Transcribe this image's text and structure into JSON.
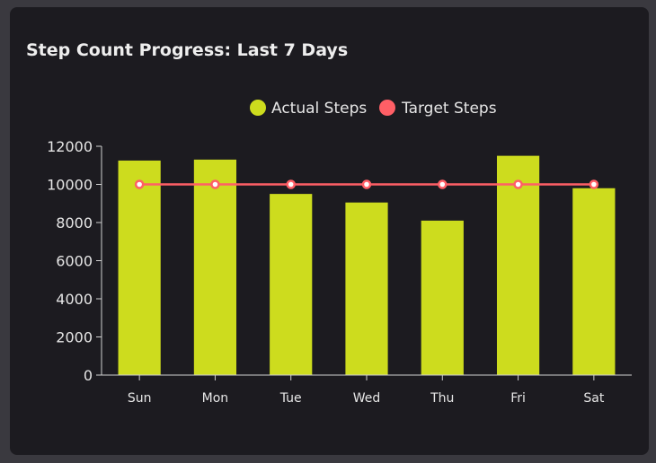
{
  "header": {
    "title": "Step Count Progress: Last 7 Days"
  },
  "colors": {
    "actual": "#cddc1e",
    "target": "#ff5f66",
    "axis": "#d0d0d0"
  },
  "chart_data": {
    "type": "bar",
    "title": "Step Count Progress: Last 7 Days",
    "categories": [
      "Sun",
      "Mon",
      "Tue",
      "Wed",
      "Thu",
      "Fri",
      "Sat"
    ],
    "series": [
      {
        "name": "Actual Steps",
        "type": "bar",
        "values": [
          11250,
          11300,
          9500,
          9050,
          8100,
          11500,
          9800
        ]
      },
      {
        "name": "Target Steps",
        "type": "line",
        "values": [
          10000,
          10000,
          10000,
          10000,
          10000,
          10000,
          10000
        ]
      }
    ],
    "yticks": [
      "0",
      "2000",
      "4000",
      "6000",
      "8000",
      "10000",
      "12000"
    ],
    "ylim": [
      0,
      12000
    ],
    "legend_position": "top-center",
    "grid": false
  }
}
